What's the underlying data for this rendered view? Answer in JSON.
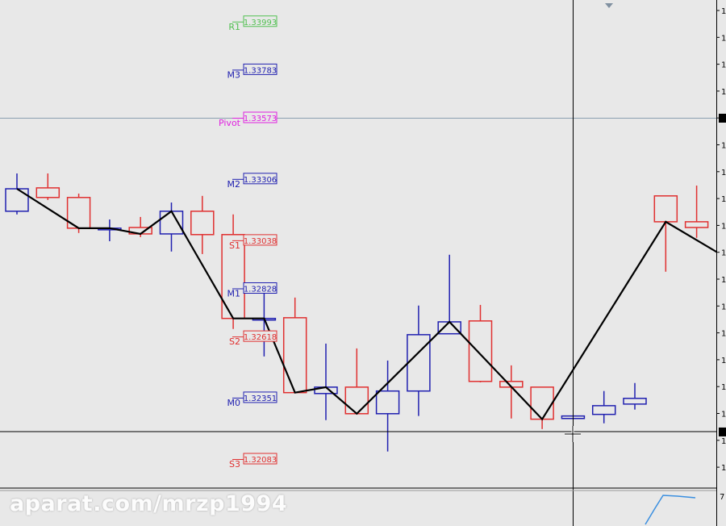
{
  "chart_data": {
    "type": "candlestick",
    "title": "",
    "colors": {
      "bull": "#2020b0",
      "bear": "#e03030",
      "zigzag": "#000000",
      "background": "#e8e8e8"
    },
    "candles": [
      {
        "o": 1.33165,
        "h": 1.3333,
        "l": 1.33151,
        "c": 1.33263
      },
      {
        "o": 1.33267,
        "h": 1.3333,
        "l": 1.33214,
        "c": 1.33225
      },
      {
        "o": 1.33225,
        "h": 1.33242,
        "l": 1.3307,
        "c": 1.33091
      },
      {
        "o": 1.33087,
        "h": 1.33129,
        "l": 1.33034,
        "c": 1.33091
      },
      {
        "o": 1.33094,
        "h": 1.3314,
        "l": 1.33052,
        "c": 1.33066
      },
      {
        "o": 1.33066,
        "h": 1.33203,
        "l": 1.32989,
        "c": 1.33165
      },
      {
        "o": 1.33165,
        "h": 1.33232,
        "l": 1.32978,
        "c": 1.33063
      },
      {
        "o": 1.33063,
        "h": 1.33151,
        "l": 1.32651,
        "c": 1.32697
      },
      {
        "o": 1.32693,
        "h": 1.32816,
        "l": 1.32531,
        "c": 1.32697
      },
      {
        "o": 1.327,
        "h": 1.32788,
        "l": 1.32373,
        "c": 1.32373
      },
      {
        "o": 1.32369,
        "h": 1.32587,
        "l": 1.32253,
        "c": 1.32397
      },
      {
        "o": 1.32397,
        "h": 1.32566,
        "l": 1.32281,
        "c": 1.32281
      },
      {
        "o": 1.32281,
        "h": 1.32513,
        "l": 1.32116,
        "c": 1.3238
      },
      {
        "o": 1.3238,
        "h": 1.32753,
        "l": 1.32271,
        "c": 1.32626
      },
      {
        "o": 1.3263,
        "h": 1.32975,
        "l": 1.3263,
        "c": 1.32682
      },
      {
        "o": 1.32686,
        "h": 1.32756,
        "l": 1.32418,
        "c": 1.32422
      },
      {
        "o": 1.32422,
        "h": 1.32492,
        "l": 1.3226,
        "c": 1.32397
      },
      {
        "o": 1.32397,
        "h": 1.32397,
        "l": 1.32214,
        "c": 1.32257
      },
      {
        "o": 1.3226,
        "h": 1.32271,
        "l": 1.3226,
        "c": 1.32271
      },
      {
        "o": 1.32278,
        "h": 1.3238,
        "l": 1.32239,
        "c": 1.32316
      },
      {
        "o": 1.32323,
        "h": 1.32415,
        "l": 1.32299,
        "c": 1.32348
      },
      {
        "o": 1.33232,
        "h": 1.33232,
        "l": 1.32901,
        "c": 1.33119
      },
      {
        "o": 1.33119,
        "h": 1.33277,
        "l": 1.33049,
        "c": 1.33094
      }
    ],
    "zigzag": [
      {
        "bar": 0,
        "price": 1.33263
      },
      {
        "bar": 2,
        "price": 1.33091
      },
      {
        "bar": 3,
        "price": 1.33091
      },
      {
        "bar": 4,
        "price": 1.33066
      },
      {
        "bar": 5,
        "price": 1.33165
      },
      {
        "bar": 7,
        "price": 1.32697
      },
      {
        "bar": 8,
        "price": 1.32697
      },
      {
        "bar": 9,
        "price": 1.32373
      },
      {
        "bar": 10,
        "price": 1.32397
      },
      {
        "bar": 11,
        "price": 1.32281
      },
      {
        "bar": 14,
        "price": 1.32682
      },
      {
        "bar": 17,
        "price": 1.32257
      },
      {
        "bar": 21,
        "price": 1.33119
      },
      {
        "bar": 23,
        "price": 1.32959
      }
    ],
    "levels": [
      {
        "name": "R1",
        "value": "1.33993",
        "color": "#50c050"
      },
      {
        "name": "M3",
        "value": "1.33783",
        "color": "#2020b0"
      },
      {
        "name": "Pivot",
        "value": "1.33573",
        "color": "#e020e0"
      },
      {
        "name": "M2",
        "value": "1.33306",
        "color": "#2020b0"
      },
      {
        "name": "S1",
        "value": "1.33038",
        "color": "#e03030"
      },
      {
        "name": "M1",
        "value": "1.32828",
        "color": "#2020b0"
      },
      {
        "name": "S2",
        "value": "1.32618",
        "color": "#e03030"
      },
      {
        "name": "M0",
        "value": "1.32351",
        "color": "#2020b0"
      },
      {
        "name": "S3",
        "value": "1.32083",
        "color": "#e03030"
      }
    ],
    "crosshair_price": 1.32203,
    "yaxis_tick_label": "1",
    "indicator_label": "7",
    "grid": false
  },
  "watermark": "aparat.com/mrzp1994"
}
